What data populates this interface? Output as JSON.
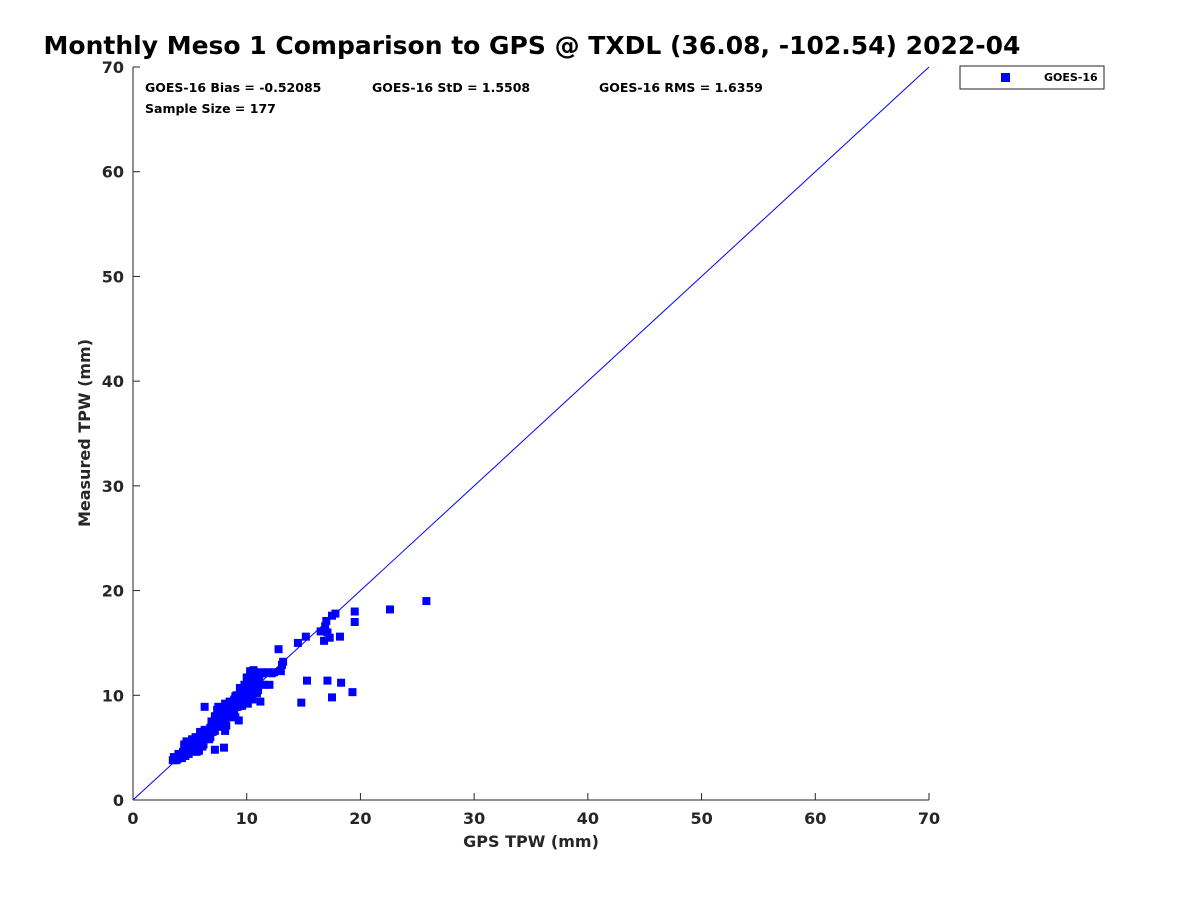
{
  "chart_data": {
    "type": "scatter",
    "title": "Monthly Meso 1 Comparison to GPS @ TXDL (36.08, -102.54) 2022-04",
    "xlabel": "GPS TPW (mm)",
    "ylabel": "Measured TPW (mm)",
    "xlim": [
      0,
      70
    ],
    "ylim": [
      0,
      70
    ],
    "xticks": [
      "0",
      "10",
      "20",
      "30",
      "40",
      "50",
      "60",
      "70"
    ],
    "yticks": [
      "0",
      "10",
      "20",
      "30",
      "40",
      "50",
      "60",
      "70"
    ],
    "grid": false,
    "legend_position": "outside-top-right",
    "reference_line": {
      "x": [
        0,
        70
      ],
      "y": [
        0,
        70
      ],
      "color": "#0000ff"
    },
    "stats": {
      "bias": "GOES-16 Bias = -0.52085",
      "std": "GOES-16 StD = 1.5508",
      "rms": "GOES-16 RMS = 1.6359",
      "sample": "Sample Size = 177"
    },
    "series": [
      {
        "name": "GOES-16",
        "color": "#0000ff",
        "marker": "square",
        "x": [
          3.5,
          3.7,
          3.9,
          4.1,
          4.3,
          4.5,
          3.6,
          3.8,
          4.0,
          4.2,
          4.4,
          4.6,
          4.8,
          5.0,
          4.7,
          4.9,
          5.1,
          5.3,
          5.5,
          4.5,
          4.7,
          5.0,
          5.2,
          5.4,
          5.6,
          5.8,
          6.0,
          6.2,
          5.5,
          5.7,
          5.9,
          6.1,
          6.3,
          6.5,
          6.7,
          5.6,
          5.9,
          6.3,
          6.6,
          6.8,
          7.0,
          7.2,
          7.4,
          7.6,
          6.9,
          7.1,
          7.3,
          7.5,
          7.7,
          7.9,
          8.1,
          8.3,
          7.2,
          7.4,
          7.6,
          7.8,
          8.0,
          8.2,
          8.4,
          8.6,
          8.8,
          7.5,
          7.8,
          8.1,
          8.3,
          8.5,
          8.7,
          8.9,
          9.1,
          9.3,
          9.5,
          8.2,
          8.5,
          8.8,
          9.0,
          9.2,
          9.4,
          9.6,
          9.8,
          10.0,
          10.2,
          9.1,
          9.4,
          9.7,
          9.9,
          10.1,
          10.3,
          10.5,
          10.7,
          10.9,
          11.1,
          9.8,
          10.0,
          10.2,
          10.4,
          10.6,
          10.8,
          11.0,
          10.1,
          10.3,
          10.5,
          10.7,
          10.9,
          11.1,
          10.0,
          10.2,
          10.4,
          10.6,
          10.8,
          11.0,
          11.2,
          11.4,
          11.8,
          12.0,
          12.2,
          11.5,
          12.8,
          13.2,
          13.0,
          14.5,
          15.2,
          16.5,
          16.9,
          17.0,
          17.5,
          17.8,
          17.3,
          16.8,
          17.1,
          18.2,
          19.5,
          19.5,
          22.6,
          25.8,
          15.3,
          18.3,
          17.1,
          19.3,
          14.8,
          17.5,
          6.3,
          8.0,
          7.2,
          6.5,
          7.8,
          8.6,
          9.2,
          9.0,
          10.4,
          9.6,
          8.9,
          9.3,
          9.7,
          10.1,
          8.4,
          7.9,
          6.8,
          6.1,
          5.9,
          5.3,
          5.1,
          4.4,
          4.2,
          4.9,
          5.7,
          6.4,
          7.0,
          7.6,
          8.7,
          9.5,
          10.3,
          10.9,
          11.3,
          12.4,
          13.1,
          8.1,
          7.3
        ],
        "y": [
          3.8,
          4.0,
          3.9,
          4.2,
          4.0,
          4.3,
          4.1,
          3.8,
          4.4,
          4.1,
          4.6,
          4.2,
          4.5,
          4.8,
          5.0,
          4.4,
          4.7,
          5.2,
          4.9,
          5.3,
          5.6,
          5.4,
          5.8,
          5.1,
          5.5,
          4.7,
          5.9,
          5.3,
          6.0,
          5.7,
          6.2,
          5.5,
          6.4,
          6.1,
          5.8,
          4.6,
          6.5,
          6.7,
          6.3,
          6.9,
          7.1,
          6.6,
          7.3,
          7.0,
          7.5,
          6.8,
          7.8,
          7.4,
          8.1,
          7.2,
          7.7,
          8.4,
          8.0,
          8.6,
          7.6,
          8.3,
          8.8,
          7.9,
          8.5,
          9.0,
          8.2,
          8.9,
          8.7,
          9.2,
          8.3,
          9.4,
          8.6,
          9.6,
          8.9,
          9.1,
          9.8,
          7.1,
          9.3,
          8.8,
          9.9,
          9.5,
          10.1,
          9.0,
          10.3,
          9.7,
          10.5,
          10.0,
          10.7,
          9.4,
          10.9,
          10.2,
          11.1,
          9.6,
          11.3,
          10.4,
          11.5,
          11.0,
          11.7,
          10.6,
          11.9,
          10.8,
          12.1,
          11.2,
          9.2,
          12.3,
          9.9,
          12.0,
          11.6,
          12.2,
          10.3,
          11.4,
          10.9,
          12.4,
          11.8,
          10.5,
          9.4,
          12.1,
          12.2,
          11.0,
          12.1,
          11.0,
          14.4,
          13.2,
          12.3,
          15.0,
          15.6,
          16.1,
          16.6,
          17.1,
          17.6,
          17.8,
          15.5,
          15.2,
          16.0,
          15.6,
          18.0,
          17.0,
          18.2,
          19.0,
          11.4,
          11.2,
          11.4,
          10.3,
          9.3,
          9.8,
          8.9,
          5.0,
          4.8,
          6.3,
          7.3,
          8.1,
          8.9,
          7.9,
          10.0,
          9.2,
          8.4,
          7.6,
          9.8,
          10.6,
          7.9,
          7.0,
          6.0,
          5.1,
          5.6,
          4.9,
          5.5,
          4.5,
          4.2,
          5.3,
          4.9,
          6.0,
          6.5,
          7.8,
          8.5,
          9.0,
          9.7,
          10.2,
          12.1,
          12.2,
          12.9,
          6.6,
          7.5
        ]
      }
    ]
  }
}
